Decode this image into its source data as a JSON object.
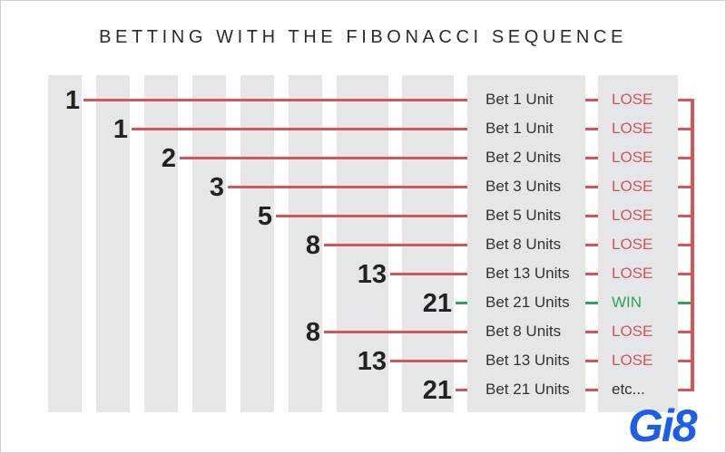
{
  "title": "BETTING WITH THE FIBONACCI SEQUENCE",
  "colors": {
    "lose": "#d9535a",
    "win": "#2fa35a",
    "column": "#e4e6e8",
    "neutral": "#333333"
  },
  "rows": [
    {
      "number": "1",
      "bet": "Bet 1 Unit",
      "result": "LOSE",
      "outcome": "lose"
    },
    {
      "number": "1",
      "bet": "Bet 1 Unit",
      "result": "LOSE",
      "outcome": "lose"
    },
    {
      "number": "2",
      "bet": "Bet 2 Units",
      "result": "LOSE",
      "outcome": "lose"
    },
    {
      "number": "3",
      "bet": "Bet 3 Units",
      "result": "LOSE",
      "outcome": "lose"
    },
    {
      "number": "5",
      "bet": "Bet 5 Units",
      "result": "LOSE",
      "outcome": "lose"
    },
    {
      "number": "8",
      "bet": "Bet 8 Units",
      "result": "LOSE",
      "outcome": "lose"
    },
    {
      "number": "13",
      "bet": "Bet 13 Units",
      "result": "LOSE",
      "outcome": "lose"
    },
    {
      "number": "21",
      "bet": "Bet 21 Units",
      "result": "WIN",
      "outcome": "win"
    },
    {
      "number": "8",
      "bet": "Bet 8 Units",
      "result": "LOSE",
      "outcome": "lose"
    },
    {
      "number": "13",
      "bet": "Bet 13 Units",
      "result": "LOSE",
      "outcome": "lose"
    },
    {
      "number": "21",
      "bet": "Bet 21 Units",
      "result": "etc...",
      "outcome": "neutral"
    }
  ],
  "logo": "Gi8"
}
